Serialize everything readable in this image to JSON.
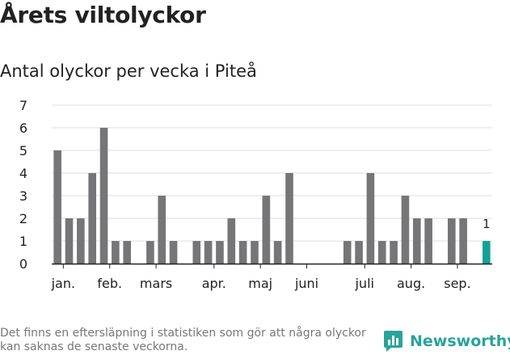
{
  "title": "Årets viltolyckor",
  "subtitle": "Antal olyckor per vecka i Piteå",
  "footnote": "Det finns en eftersläpning i statistiken som gör att några olyckor kan saknas de senaste veckorna.",
  "brand": "Newsworthy",
  "colors": {
    "bar": "#767577",
    "highlight": "#11a396",
    "grid": "#dddddd",
    "axis": "#222222",
    "brand": "#2aa39a"
  },
  "chart_data": {
    "type": "bar",
    "title": "Antal olyckor per vecka i Piteå",
    "xlabel": "",
    "ylabel": "",
    "ylim": [
      0,
      7
    ],
    "yticks": [
      0,
      1,
      2,
      3,
      4,
      5,
      6,
      7
    ],
    "grid": true,
    "weeks": [
      1,
      2,
      3,
      4,
      5,
      6,
      7,
      8,
      9,
      10,
      11,
      12,
      13,
      14,
      15,
      16,
      17,
      18,
      19,
      20,
      21,
      22,
      23,
      24,
      25,
      26,
      27,
      28,
      29,
      30,
      31,
      32,
      33,
      34,
      35,
      36,
      37,
      38
    ],
    "values": [
      5,
      2,
      2,
      4,
      6,
      1,
      1,
      0,
      1,
      3,
      1,
      0,
      1,
      1,
      1,
      2,
      1,
      1,
      3,
      1,
      4,
      0,
      0,
      0,
      0,
      1,
      1,
      4,
      1,
      1,
      3,
      2,
      2,
      0,
      2,
      2,
      0,
      1
    ],
    "highlight_index": 37,
    "highlight_label": "1",
    "month_labels": [
      {
        "label": "jan.",
        "week": 1.5
      },
      {
        "label": "feb.",
        "week": 5.5
      },
      {
        "label": "mars",
        "week": 9.5
      },
      {
        "label": "apr.",
        "week": 14.5
      },
      {
        "label": "maj",
        "week": 18.5
      },
      {
        "label": "juni",
        "week": 22.5
      },
      {
        "label": "juli",
        "week": 27.5
      },
      {
        "label": "aug.",
        "week": 31.5
      },
      {
        "label": "sep.",
        "week": 35.5
      }
    ]
  }
}
